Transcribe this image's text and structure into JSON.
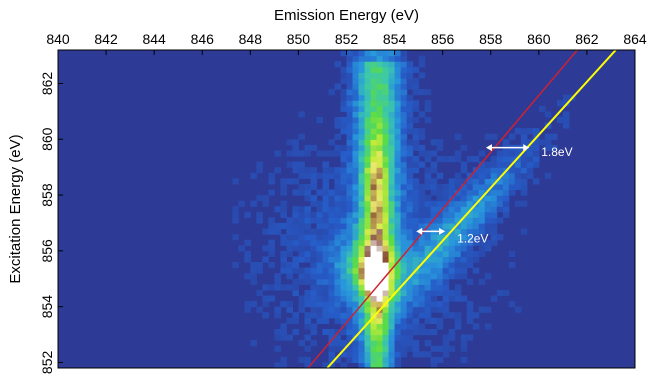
{
  "chart_data": {
    "type": "heatmap",
    "title": "",
    "xlabel": "Emission Energy (eV)",
    "ylabel": "Excitation Energy (eV)",
    "xlim": [
      840,
      864
    ],
    "ylim": [
      851.8,
      863.2
    ],
    "x_ticks": [
      840,
      842,
      844,
      846,
      848,
      850,
      852,
      854,
      856,
      858,
      860,
      862,
      864
    ],
    "y_ticks": [
      852,
      854,
      856,
      858,
      860,
      862
    ],
    "x_axis_position": "top",
    "grid": false,
    "colormap": "blue-cyan-green-yellow-brown-white",
    "features": [
      {
        "name_hidden": true,
        "x_center": 853.3,
        "y_from": 851.8,
        "y_to": 863.2,
        "description": "vertical band"
      },
      {
        "x": 853.2,
        "y": 855.0,
        "intensity": "max"
      }
    ],
    "lines": [
      {
        "color": "#cc2233",
        "points": [
          [
            850.4,
            851.8
          ],
          [
            861.6,
            863.2
          ]
        ]
      },
      {
        "color": "#ffff00",
        "points": [
          [
            851.2,
            851.8
          ],
          [
            863.2,
            863.2
          ]
        ]
      }
    ],
    "annotations": [
      {
        "text": "1.2eV",
        "arrow_from": [
          854.9,
          856.7
        ],
        "arrow_to": [
          856.1,
          856.7
        ],
        "text_pos": [
          856.6,
          856.3
        ]
      },
      {
        "text": "1.8eV",
        "arrow_from": [
          857.8,
          859.7
        ],
        "arrow_to": [
          859.6,
          859.7
        ],
        "text_pos": [
          860.1,
          859.4
        ]
      }
    ]
  },
  "colors": {
    "background": "#2d3a96",
    "axis": "#000000",
    "annotation": "#ffffff"
  }
}
